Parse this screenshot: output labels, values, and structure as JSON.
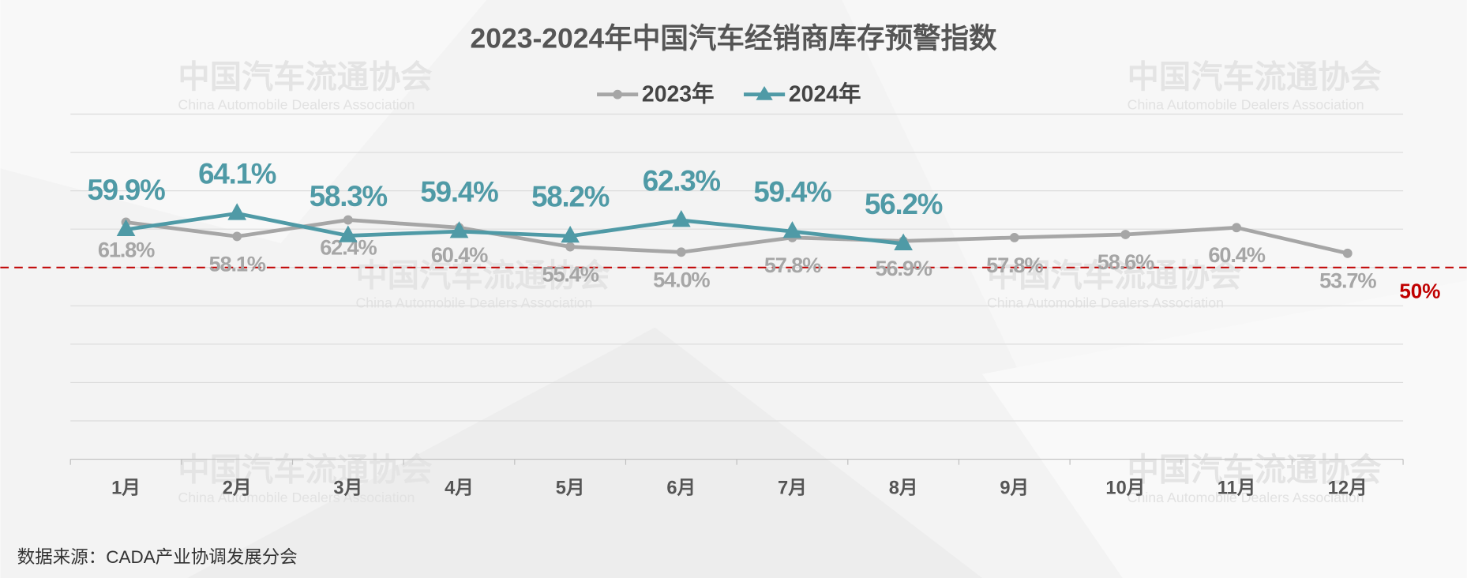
{
  "chart_data": {
    "type": "line",
    "title": "2023-2024年中国汽车经销商库存预警指数",
    "categories": [
      "1月",
      "2月",
      "3月",
      "4月",
      "5月",
      "6月",
      "7月",
      "8月",
      "9月",
      "10月",
      "11月",
      "12月"
    ],
    "series": [
      {
        "name": "2023年",
        "color": "#a6a6a6",
        "marker": "circle",
        "values": [
          61.8,
          58.1,
          62.4,
          60.4,
          55.4,
          54.0,
          57.8,
          56.9,
          57.8,
          58.6,
          60.4,
          53.7
        ],
        "value_labels": [
          "61.8%",
          "58.1%",
          "62.4%",
          "60.4%",
          "55.4%",
          "54.0%",
          "57.8%",
          "56.9%",
          "57.8%",
          "58.6%",
          "60.4%",
          "53.7%"
        ]
      },
      {
        "name": "2024年",
        "color": "#4f9aa6",
        "marker": "triangle",
        "values": [
          59.9,
          64.1,
          58.3,
          59.4,
          58.2,
          62.3,
          59.4,
          56.2,
          null,
          null,
          null,
          null
        ],
        "value_labels": [
          "59.9%",
          "64.1%",
          "58.3%",
          "59.4%",
          "58.2%",
          "62.3%",
          "59.4%",
          "56.2%",
          null,
          null,
          null,
          null
        ]
      }
    ],
    "ylim": [
      0,
      90
    ],
    "yticks": [
      0,
      10,
      20,
      30,
      40,
      50,
      60,
      70,
      80,
      90
    ],
    "grid": true,
    "legend": "top",
    "reference_line": {
      "value": 50,
      "label": "50%",
      "color": "#c00000"
    },
    "watermark": [
      "中国汽车流通协会",
      "China Automobile Dealers Association"
    ],
    "source": "数据来源：CADA产业协调发展分会"
  }
}
